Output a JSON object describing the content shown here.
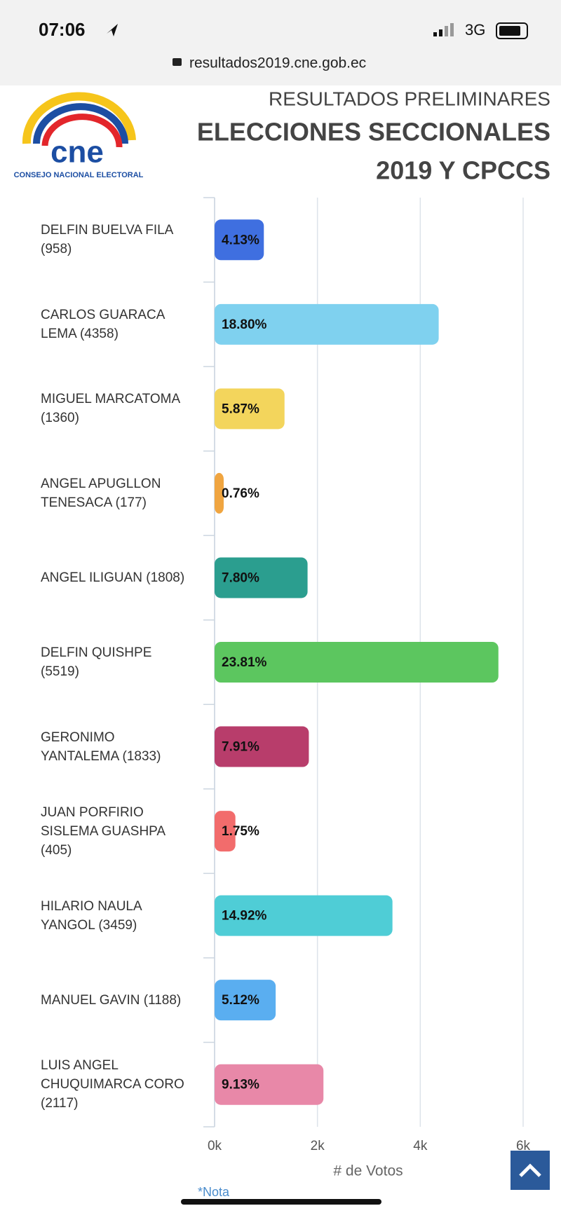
{
  "status_bar": {
    "time": "07:06",
    "network": "3G"
  },
  "url": "resultados2019.cne.gob.ec",
  "header": {
    "logo": "cne",
    "logo_caption": "CONSEJO NACIONAL ELECTORAL",
    "subtitle": "RESULTADOS PRELIMINARES",
    "title_line1": "ELECCIONES SECCIONALES",
    "title_line2": "2019 Y CPCCS"
  },
  "chart_data": {
    "type": "bar",
    "orientation": "horizontal",
    "categories": [
      "DELFIN BUELVA FILA (958)",
      "CARLOS GUARACA LEMA (4358)",
      "MIGUEL MARCATOMA (1360)",
      "ANGEL APUGLLON TENESACA (177)",
      "ANGEL ILIGUAN (1808)",
      "DELFIN QUISHPE (5519)",
      "GERONIMO YANTALEMA (1833)",
      "JUAN PORFIRIO SISLEMA GUASHPA (405)",
      "HILARIO NAULA YANGOL (3459)",
      "MANUEL GAVIN (1188)",
      "LUIS ANGEL CHUQUIMARCA CORO (2117)"
    ],
    "values": [
      958,
      4358,
      1360,
      177,
      1808,
      5519,
      1833,
      405,
      3459,
      1188,
      2117
    ],
    "percent_labels": [
      "4.13%",
      "18.80%",
      "5.87%",
      "0.76%",
      "7.80%",
      "23.81%",
      "7.91%",
      "1.75%",
      "14.92%",
      "5.12%",
      "9.13%"
    ],
    "colors": [
      "#3f6fe0",
      "#7fd1ef",
      "#f3d55c",
      "#f0a540",
      "#2b9e8f",
      "#5cc65f",
      "#b83d6b",
      "#f26c6c",
      "#4fcdd6",
      "#5aaef0",
      "#e888a8"
    ],
    "xlim": [
      0,
      6000
    ],
    "xticks": [
      {
        "value": 0,
        "label": "0k"
      },
      {
        "value": 2000,
        "label": "2k"
      },
      {
        "value": 4000,
        "label": "4k"
      },
      {
        "value": 6000,
        "label": "6k"
      }
    ],
    "xlabel": "# de Votos",
    "grid": true
  },
  "footer_note": "*Nota"
}
